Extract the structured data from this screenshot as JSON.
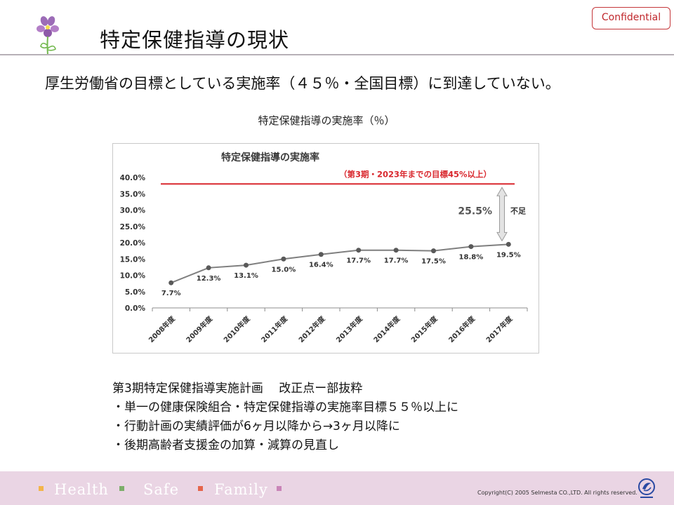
{
  "header": {
    "title": "特定保健指導の現状",
    "confidential_label": "Confidential"
  },
  "headline": "厚生労働省の目標としている実施率（４５％・全国目標）に到達していない。",
  "chart_caption": "特定保健指導の実施率（％）",
  "chart_data": {
    "type": "line",
    "title": "特定保健指導の実施率",
    "categories": [
      "2008年度",
      "2009年度",
      "2010年度",
      "2011年度",
      "2012年度",
      "2013年度",
      "2014年度",
      "2015年度",
      "2016年度",
      "2017年度"
    ],
    "values": [
      7.7,
      12.3,
      13.1,
      15.0,
      16.4,
      17.7,
      17.7,
      17.5,
      18.8,
      19.5
    ],
    "value_labels": [
      "7.7%",
      "12.3%",
      "13.1%",
      "15.0%",
      "16.4%",
      "17.7%",
      "17.7%",
      "17.5%",
      "18.8%",
      "19.5%"
    ],
    "ylim": [
      0,
      40
    ],
    "yticks": [
      0,
      5,
      10,
      15,
      20,
      25,
      30,
      35,
      40
    ],
    "ytick_labels": [
      "0.0%",
      "5.0%",
      "10.0%",
      "15.0%",
      "20.0%",
      "25.0%",
      "30.0%",
      "35.0%",
      "40.0%"
    ],
    "target": {
      "value": 38,
      "label": "（第3期・2023年までの目標45%以上）",
      "color": "#d9282e"
    },
    "gap": {
      "value_label": "25.5%",
      "text": "不足"
    },
    "grid": false,
    "line_color": "#7f7f7f",
    "marker_color": "#595959"
  },
  "plan": {
    "heading": "第3期特定保健指導実施計画　 改正点ー部抜粋",
    "items": [
      "・単一の健康保険組合・特定保健指導の実施率目標５５％以上に",
      "・行動計画の実績評価が6ヶ月以降から→3ヶ月以降に",
      "・後期高齢者支援金の加算・減算の見直し"
    ]
  },
  "footer": {
    "tags": [
      {
        "label": "Health",
        "color": "#f3b54a"
      },
      {
        "label": "Safe",
        "color": "#7cae6a"
      },
      {
        "label": "Family",
        "color": "#e5654b"
      }
    ],
    "end_marker_color": "#c984b8",
    "copyright": "Copyright(C) 2005 Selmesta CO.,LTD.  All rights reserved."
  },
  "icons": {
    "logo": "violet-flower-icon",
    "corporate_mark": "company-logo-icon",
    "gap_arrow": "double-arrow-icon"
  }
}
